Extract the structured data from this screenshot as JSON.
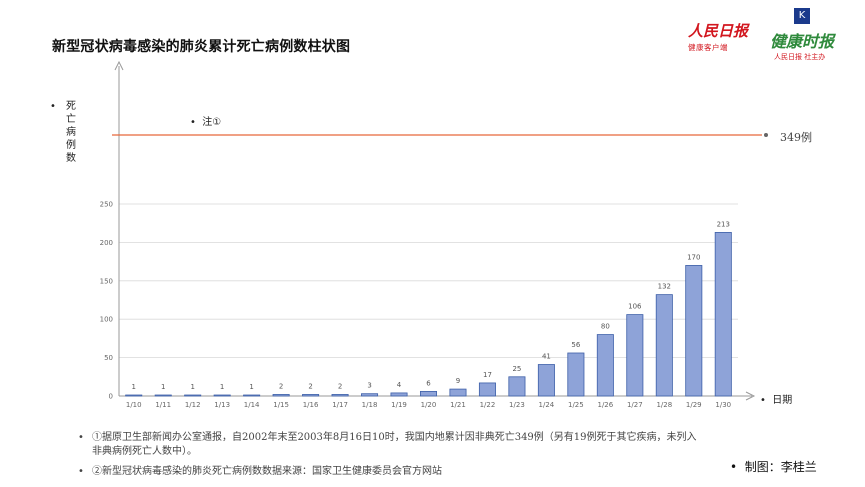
{
  "title": "新型冠状病毒感染的肺炎累计死亡病例数柱状图",
  "logos": {
    "rmrb": {
      "text": "人民日报",
      "sub": "健康客户端"
    },
    "jksb": {
      "text": "健康时报",
      "sub": "人民日报 社主办",
      "mark": "K"
    }
  },
  "y_axis_label": "死亡病例数",
  "x_axis_label": "日期",
  "note_marker": "注①",
  "reference_line": {
    "value": 349,
    "label": "349例",
    "color": "#e8683a"
  },
  "footnotes": [
    "①据原卫生部新闻办公室通报，自2002年末至2003年8月16日10时，我国内地累计因非典死亡349例（另有19例死于其它疾病，未列入非典病例死亡人数中）。",
    "②新型冠状病毒感染的肺炎死亡病例数数据来源：国家卫生健康委员会官方网站"
  ],
  "credit": "制图：李桂兰",
  "colors": {
    "bar_fill": "#8ea3d8",
    "bar_stroke": "#3d5fa8",
    "grid": "#d9d9d9",
    "axis": "#9a9a9a"
  },
  "chart_data": {
    "type": "bar",
    "categories": [
      "1/10",
      "1/11",
      "1/12",
      "1/13",
      "1/14",
      "1/15",
      "1/16",
      "1/17",
      "1/18",
      "1/19",
      "1/20",
      "1/21",
      "1/22",
      "1/23",
      "1/24",
      "1/25",
      "1/26",
      "1/27",
      "1/28",
      "1/29",
      "1/30"
    ],
    "values": [
      1,
      1,
      1,
      1,
      1,
      2,
      2,
      2,
      3,
      4,
      6,
      9,
      17,
      25,
      41,
      56,
      80,
      106,
      132,
      170,
      213
    ],
    "ylim": [
      0,
      250
    ],
    "yticks": [
      0,
      50,
      100,
      150,
      200,
      250
    ],
    "grid": true,
    "xlabel": "日期",
    "ylabel": "死亡病例数"
  }
}
